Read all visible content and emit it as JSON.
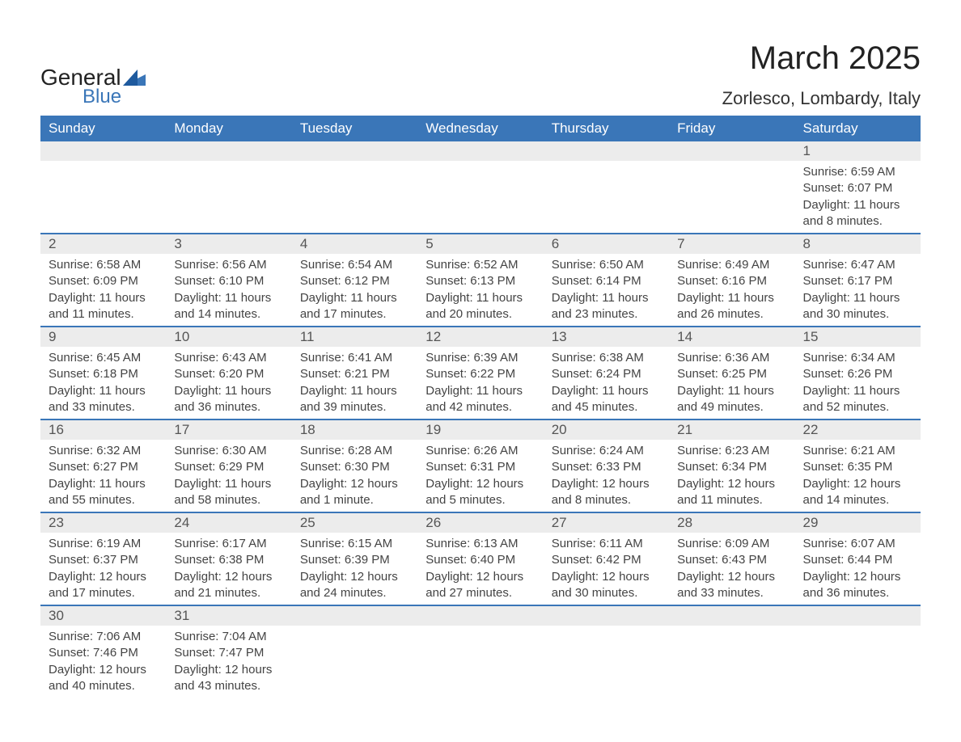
{
  "logo": {
    "text1": "General",
    "text2": "Blue"
  },
  "title": "March 2025",
  "subtitle": "Zorlesco, Lombardy, Italy",
  "colors": {
    "header_bg": "#3a76b8",
    "header_text": "#ffffff",
    "row_divider": "#3a76b8",
    "daynum_bg": "#ececec",
    "daynum_text": "#555555",
    "body_text": "#444444",
    "logo_blue": "#3a76b8"
  },
  "font_sizes": {
    "title": 40,
    "subtitle": 22,
    "dayheader": 17,
    "daynum": 17,
    "dayinfo": 15,
    "logo": 28
  },
  "day_headers": [
    "Sunday",
    "Monday",
    "Tuesday",
    "Wednesday",
    "Thursday",
    "Friday",
    "Saturday"
  ],
  "weeks": [
    [
      {
        "day": "",
        "sunrise": "",
        "sunset": "",
        "daylight": ""
      },
      {
        "day": "",
        "sunrise": "",
        "sunset": "",
        "daylight": ""
      },
      {
        "day": "",
        "sunrise": "",
        "sunset": "",
        "daylight": ""
      },
      {
        "day": "",
        "sunrise": "",
        "sunset": "",
        "daylight": ""
      },
      {
        "day": "",
        "sunrise": "",
        "sunset": "",
        "daylight": ""
      },
      {
        "day": "",
        "sunrise": "",
        "sunset": "",
        "daylight": ""
      },
      {
        "day": "1",
        "sunrise": "Sunrise: 6:59 AM",
        "sunset": "Sunset: 6:07 PM",
        "daylight": "Daylight: 11 hours and 8 minutes."
      }
    ],
    [
      {
        "day": "2",
        "sunrise": "Sunrise: 6:58 AM",
        "sunset": "Sunset: 6:09 PM",
        "daylight": "Daylight: 11 hours and 11 minutes."
      },
      {
        "day": "3",
        "sunrise": "Sunrise: 6:56 AM",
        "sunset": "Sunset: 6:10 PM",
        "daylight": "Daylight: 11 hours and 14 minutes."
      },
      {
        "day": "4",
        "sunrise": "Sunrise: 6:54 AM",
        "sunset": "Sunset: 6:12 PM",
        "daylight": "Daylight: 11 hours and 17 minutes."
      },
      {
        "day": "5",
        "sunrise": "Sunrise: 6:52 AM",
        "sunset": "Sunset: 6:13 PM",
        "daylight": "Daylight: 11 hours and 20 minutes."
      },
      {
        "day": "6",
        "sunrise": "Sunrise: 6:50 AM",
        "sunset": "Sunset: 6:14 PM",
        "daylight": "Daylight: 11 hours and 23 minutes."
      },
      {
        "day": "7",
        "sunrise": "Sunrise: 6:49 AM",
        "sunset": "Sunset: 6:16 PM",
        "daylight": "Daylight: 11 hours and 26 minutes."
      },
      {
        "day": "8",
        "sunrise": "Sunrise: 6:47 AM",
        "sunset": "Sunset: 6:17 PM",
        "daylight": "Daylight: 11 hours and 30 minutes."
      }
    ],
    [
      {
        "day": "9",
        "sunrise": "Sunrise: 6:45 AM",
        "sunset": "Sunset: 6:18 PM",
        "daylight": "Daylight: 11 hours and 33 minutes."
      },
      {
        "day": "10",
        "sunrise": "Sunrise: 6:43 AM",
        "sunset": "Sunset: 6:20 PM",
        "daylight": "Daylight: 11 hours and 36 minutes."
      },
      {
        "day": "11",
        "sunrise": "Sunrise: 6:41 AM",
        "sunset": "Sunset: 6:21 PM",
        "daylight": "Daylight: 11 hours and 39 minutes."
      },
      {
        "day": "12",
        "sunrise": "Sunrise: 6:39 AM",
        "sunset": "Sunset: 6:22 PM",
        "daylight": "Daylight: 11 hours and 42 minutes."
      },
      {
        "day": "13",
        "sunrise": "Sunrise: 6:38 AM",
        "sunset": "Sunset: 6:24 PM",
        "daylight": "Daylight: 11 hours and 45 minutes."
      },
      {
        "day": "14",
        "sunrise": "Sunrise: 6:36 AM",
        "sunset": "Sunset: 6:25 PM",
        "daylight": "Daylight: 11 hours and 49 minutes."
      },
      {
        "day": "15",
        "sunrise": "Sunrise: 6:34 AM",
        "sunset": "Sunset: 6:26 PM",
        "daylight": "Daylight: 11 hours and 52 minutes."
      }
    ],
    [
      {
        "day": "16",
        "sunrise": "Sunrise: 6:32 AM",
        "sunset": "Sunset: 6:27 PM",
        "daylight": "Daylight: 11 hours and 55 minutes."
      },
      {
        "day": "17",
        "sunrise": "Sunrise: 6:30 AM",
        "sunset": "Sunset: 6:29 PM",
        "daylight": "Daylight: 11 hours and 58 minutes."
      },
      {
        "day": "18",
        "sunrise": "Sunrise: 6:28 AM",
        "sunset": "Sunset: 6:30 PM",
        "daylight": "Daylight: 12 hours and 1 minute."
      },
      {
        "day": "19",
        "sunrise": "Sunrise: 6:26 AM",
        "sunset": "Sunset: 6:31 PM",
        "daylight": "Daylight: 12 hours and 5 minutes."
      },
      {
        "day": "20",
        "sunrise": "Sunrise: 6:24 AM",
        "sunset": "Sunset: 6:33 PM",
        "daylight": "Daylight: 12 hours and 8 minutes."
      },
      {
        "day": "21",
        "sunrise": "Sunrise: 6:23 AM",
        "sunset": "Sunset: 6:34 PM",
        "daylight": "Daylight: 12 hours and 11 minutes."
      },
      {
        "day": "22",
        "sunrise": "Sunrise: 6:21 AM",
        "sunset": "Sunset: 6:35 PM",
        "daylight": "Daylight: 12 hours and 14 minutes."
      }
    ],
    [
      {
        "day": "23",
        "sunrise": "Sunrise: 6:19 AM",
        "sunset": "Sunset: 6:37 PM",
        "daylight": "Daylight: 12 hours and 17 minutes."
      },
      {
        "day": "24",
        "sunrise": "Sunrise: 6:17 AM",
        "sunset": "Sunset: 6:38 PM",
        "daylight": "Daylight: 12 hours and 21 minutes."
      },
      {
        "day": "25",
        "sunrise": "Sunrise: 6:15 AM",
        "sunset": "Sunset: 6:39 PM",
        "daylight": "Daylight: 12 hours and 24 minutes."
      },
      {
        "day": "26",
        "sunrise": "Sunrise: 6:13 AM",
        "sunset": "Sunset: 6:40 PM",
        "daylight": "Daylight: 12 hours and 27 minutes."
      },
      {
        "day": "27",
        "sunrise": "Sunrise: 6:11 AM",
        "sunset": "Sunset: 6:42 PM",
        "daylight": "Daylight: 12 hours and 30 minutes."
      },
      {
        "day": "28",
        "sunrise": "Sunrise: 6:09 AM",
        "sunset": "Sunset: 6:43 PM",
        "daylight": "Daylight: 12 hours and 33 minutes."
      },
      {
        "day": "29",
        "sunrise": "Sunrise: 6:07 AM",
        "sunset": "Sunset: 6:44 PM",
        "daylight": "Daylight: 12 hours and 36 minutes."
      }
    ],
    [
      {
        "day": "30",
        "sunrise": "Sunrise: 7:06 AM",
        "sunset": "Sunset: 7:46 PM",
        "daylight": "Daylight: 12 hours and 40 minutes."
      },
      {
        "day": "31",
        "sunrise": "Sunrise: 7:04 AM",
        "sunset": "Sunset: 7:47 PM",
        "daylight": "Daylight: 12 hours and 43 minutes."
      },
      {
        "day": "",
        "sunrise": "",
        "sunset": "",
        "daylight": ""
      },
      {
        "day": "",
        "sunrise": "",
        "sunset": "",
        "daylight": ""
      },
      {
        "day": "",
        "sunrise": "",
        "sunset": "",
        "daylight": ""
      },
      {
        "day": "",
        "sunrise": "",
        "sunset": "",
        "daylight": ""
      },
      {
        "day": "",
        "sunrise": "",
        "sunset": "",
        "daylight": ""
      }
    ]
  ]
}
